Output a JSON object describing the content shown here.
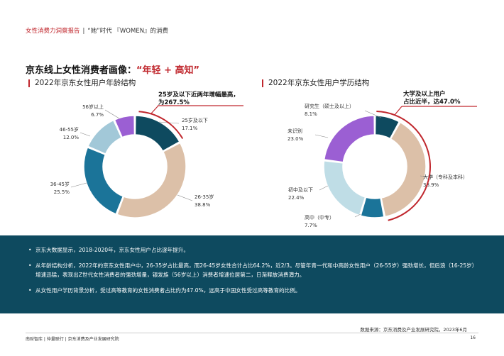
{
  "header": {
    "report": "女性消费力洞察报告",
    "separator": "|",
    "subtitle": "“她”时代 『WOMEN』的消费"
  },
  "title": {
    "prefix": "京东线上女性消费者画像：",
    "highlight": "“年轻 + 高知”"
  },
  "colors": {
    "accent_red": "#c0272d",
    "dark_teal": "#0e4a5f",
    "beige": "#dcc0a8",
    "blue": "#1b7499",
    "light_blue": "#a2c8d8",
    "pale_blue": "#bfdde6",
    "purple": "#9b5fd3"
  },
  "chart_data": [
    {
      "type": "pie",
      "title": "2022年京东女性用户年龄结构",
      "callout": [
        "25岁及以下近两年增幅最高，",
        "为267.5%"
      ],
      "slices": [
        {
          "label": "25岁及以下",
          "value": 17.1,
          "value_text": "17.1%",
          "color": "#0e4a5f"
        },
        {
          "label": "26-35岁",
          "value": 38.8,
          "value_text": "38.8%",
          "color": "#dcc0a8"
        },
        {
          "label": "36-45岁",
          "value": 25.5,
          "value_text": "25.5%",
          "color": "#1b7499"
        },
        {
          "label": "46-55岁",
          "value": 12.0,
          "value_text": "12.0%",
          "color": "#a2c8d8"
        },
        {
          "label": "56岁以上",
          "value": 6.7,
          "value_text": "6.7%",
          "color": "#9b5fd3"
        }
      ]
    },
    {
      "type": "pie",
      "title": "2022年京东女性用户学历结构",
      "callout": [
        "大学及以上用户",
        "占比近半，达47.0%"
      ],
      "slices": [
        {
          "label": "研究生（硕士及以上）",
          "value": 8.1,
          "value_text": "8.1%",
          "color": "#0e4a5f"
        },
        {
          "label": "大学（专科及本科）",
          "value": 38.9,
          "value_text": "38.9%",
          "color": "#dcc0a8"
        },
        {
          "label": "高中（中专）",
          "value": 7.7,
          "value_text": "7.7%",
          "color": "#1b7499"
        },
        {
          "label": "初中及以下",
          "value": 22.4,
          "value_text": "22.4%",
          "color": "#bfdde6"
        },
        {
          "label": "未识别",
          "value": 23.0,
          "value_text": "23.0%",
          "color": "#9b5fd3"
        }
      ]
    }
  ],
  "bullets": [
    "京东大数据显示，2018-2020年，京东女性用户占比逐年提升。",
    "从年龄结构分析，2022年的京东女性用户中，26-35岁占比最高，而26-45岁女性合计占比64.2%，近2/3。尽管年青一代和中高龄女性用户（26-55岁）强劲增长，但后浪（16-25岁）增速迅猛，表现出Z世代女性消费者的强劲增量，银发族（56岁以上）消费者增速位居第二，日渐释放消费潜力。",
    "从女性用户学历背景分析，受过高等教育的女性消费者占比约为47.0%，远高于中国女性受过高等教育的比例。"
  ],
  "source": "数据来源：京东消费及产业发展研究院，2023年6月",
  "footer": {
    "orgs": "南财智库 | 仲量联行 | 京东消费及产业发展研究院",
    "page": "16"
  }
}
